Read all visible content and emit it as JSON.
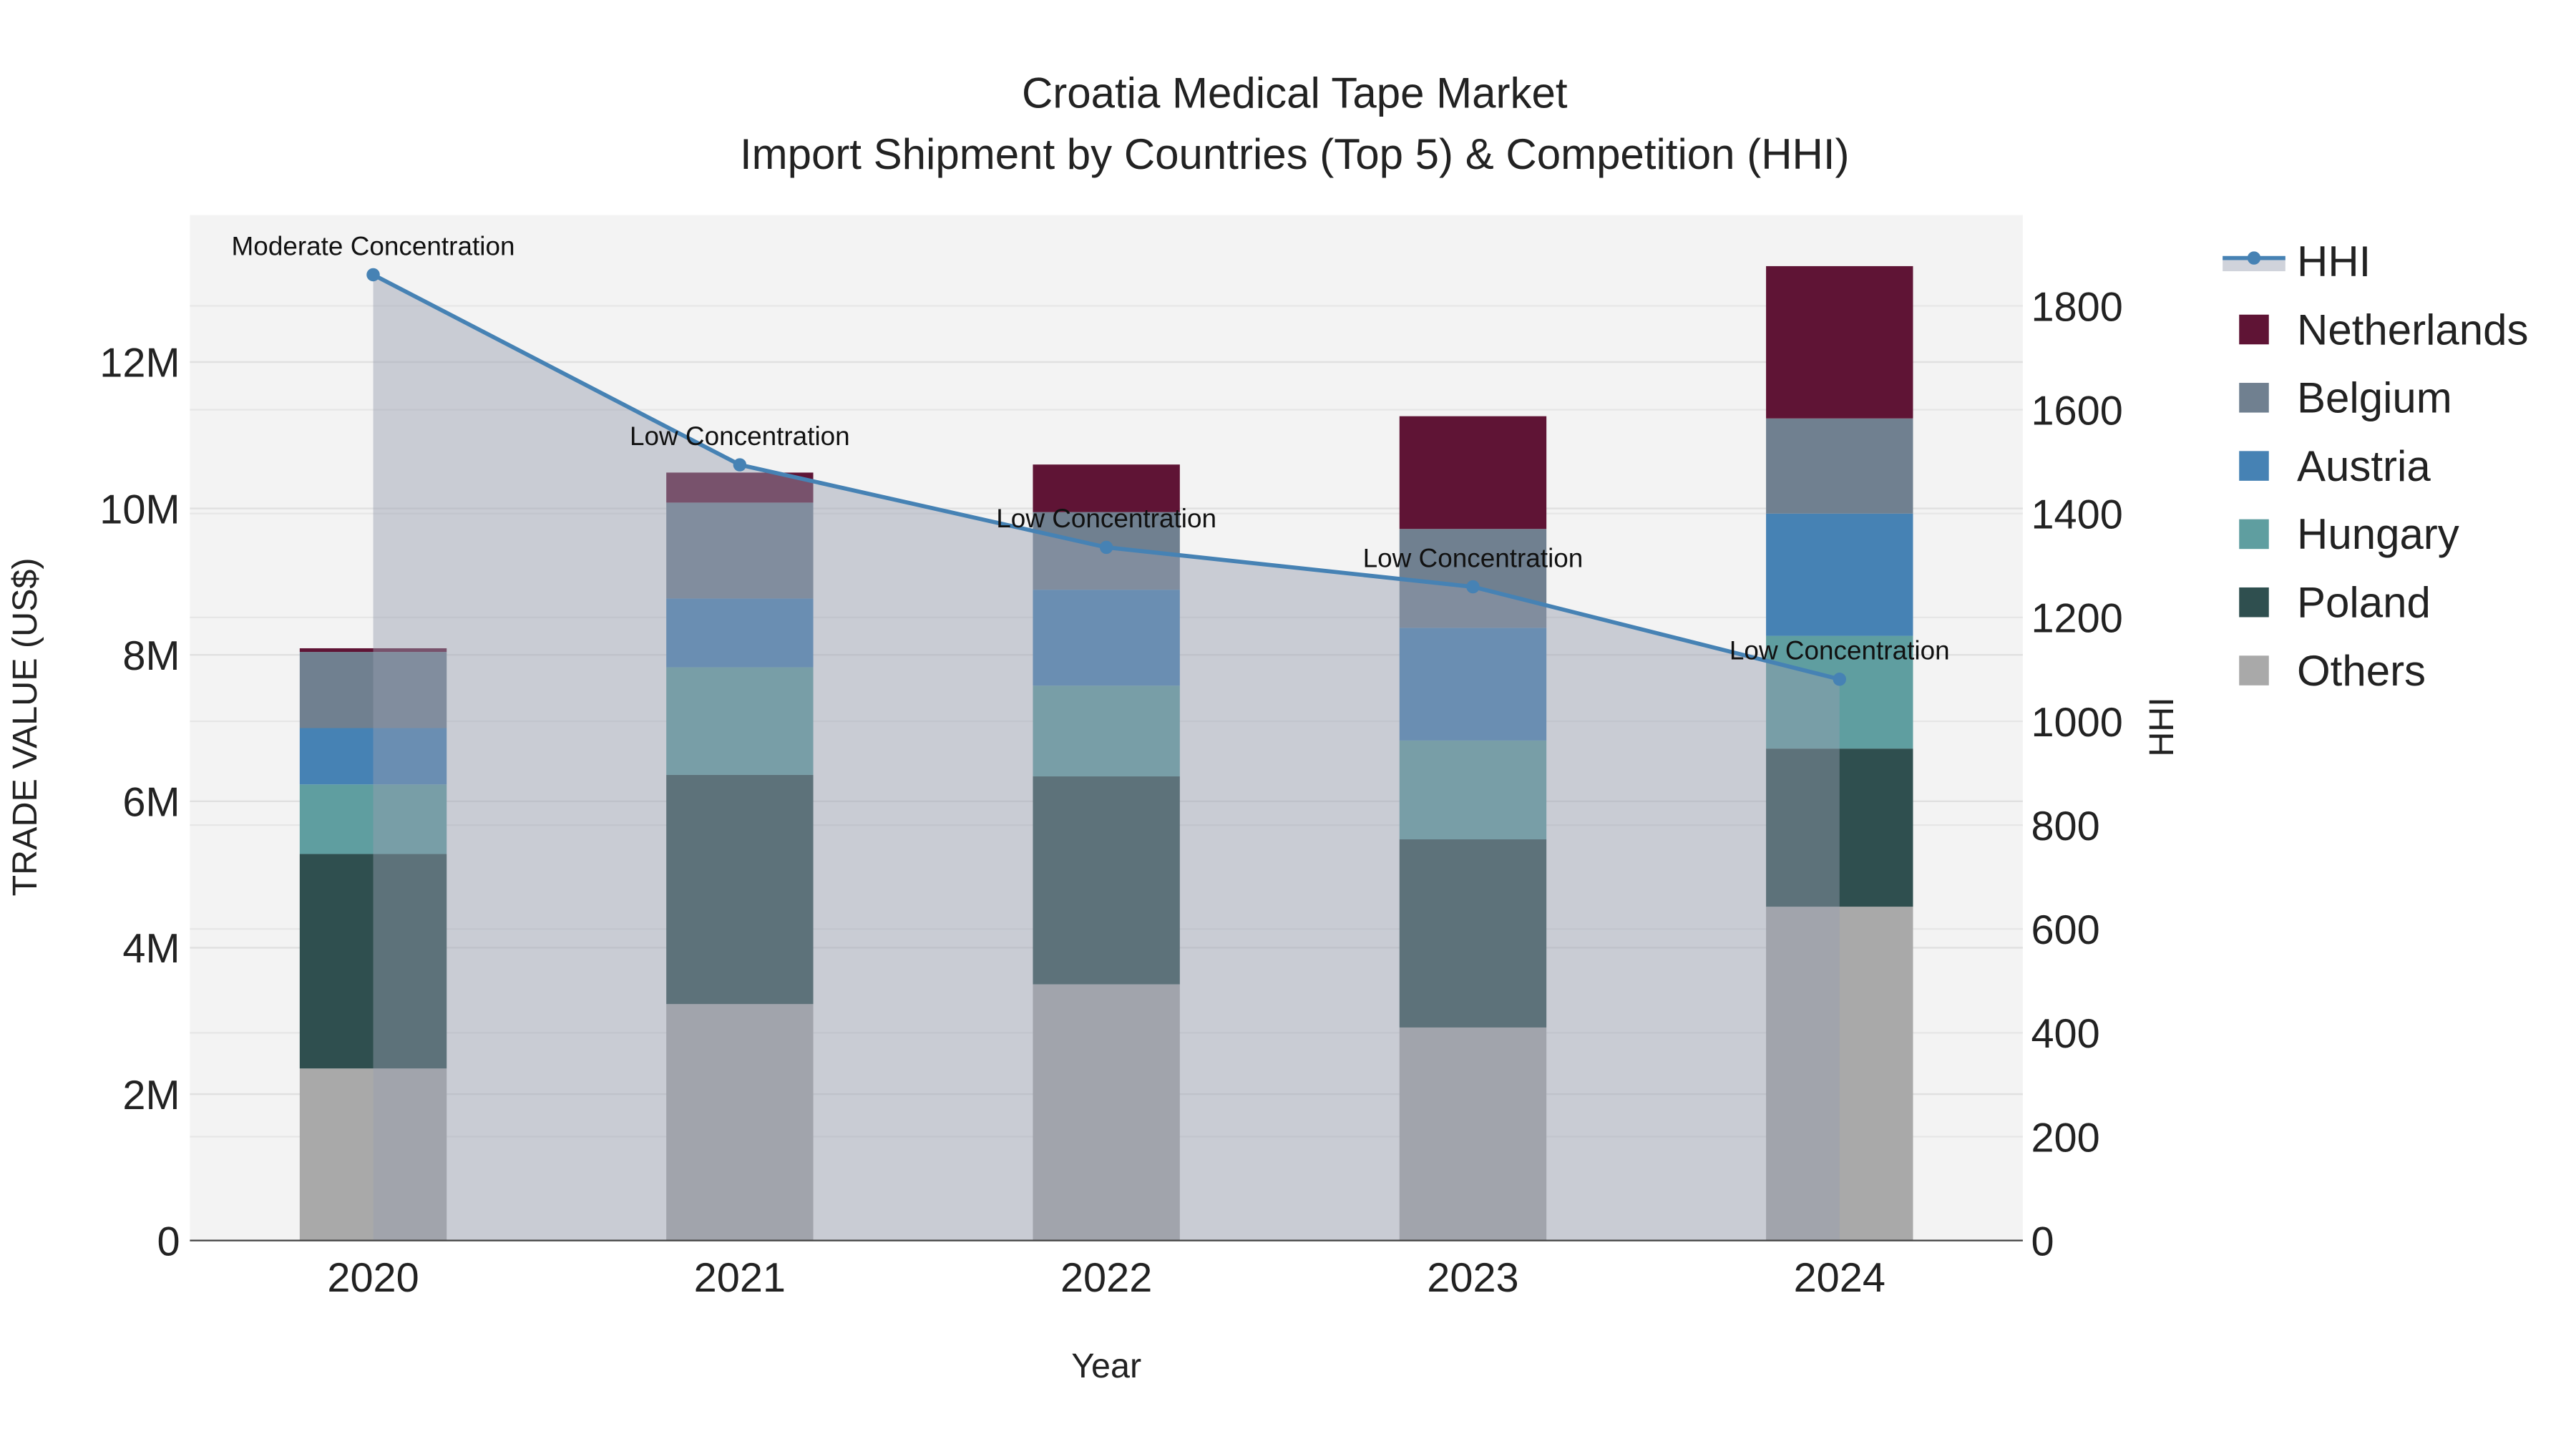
{
  "chart_data": {
    "type": "bar",
    "title": "Croatia Medical Tape Market",
    "subtitle": "Import Shipment by Countries (Top 5) & Competition (HHI)",
    "xlabel": "Year",
    "ylabel": "TRADE VALUE (US$)",
    "y2label": "HHI",
    "categories": [
      "2020",
      "2021",
      "2022",
      "2023",
      "2024"
    ],
    "ylim": [
      0,
      14000000
    ],
    "y2lim": [
      0,
      1975
    ],
    "yticks": [
      0,
      2000000,
      4000000,
      6000000,
      8000000,
      10000000,
      12000000
    ],
    "ytick_labels": [
      "0",
      "2M",
      "4M",
      "6M",
      "8M",
      "10M",
      "12M"
    ],
    "y2ticks": [
      0,
      200,
      400,
      600,
      800,
      1000,
      1200,
      1400,
      1600,
      1800
    ],
    "y2tick_labels": [
      "0",
      "200",
      "400",
      "600",
      "800",
      "1000",
      "1200",
      "1400",
      "1600",
      "1800"
    ],
    "stacked": true,
    "legend_position": "right",
    "series": [
      {
        "name": "Others",
        "color": "#a9a9a9",
        "values": [
          2350000,
          3230000,
          3500000,
          2910000,
          4560000
        ]
      },
      {
        "name": "Poland",
        "color": "#2f4f4f",
        "values": [
          2930000,
          3130000,
          2840000,
          2570000,
          2160000
        ]
      },
      {
        "name": "Hungary",
        "color": "#5f9ea0",
        "values": [
          950000,
          1470000,
          1240000,
          1350000,
          1540000
        ]
      },
      {
        "name": "Austria",
        "color": "#4682b4",
        "values": [
          770000,
          940000,
          1310000,
          1540000,
          1670000
        ]
      },
      {
        "name": "Belgium",
        "color": "#708090",
        "values": [
          1040000,
          1310000,
          1060000,
          1350000,
          1300000
        ]
      },
      {
        "name": "Netherlands",
        "color": "#5f1435",
        "values": [
          50000,
          410000,
          650000,
          1540000,
          2080000
        ]
      }
    ],
    "line": {
      "name": "HHI",
      "color": "#4682b4",
      "values": [
        1860,
        1494,
        1335,
        1259,
        1081
      ],
      "annotations": [
        "Moderate Concentration",
        "Low Concentration",
        "Low Concentration",
        "Low Concentration",
        "Low Concentration"
      ]
    },
    "legend_order": [
      "HHI",
      "Netherlands",
      "Belgium",
      "Austria",
      "Hungary",
      "Poland",
      "Others"
    ]
  }
}
